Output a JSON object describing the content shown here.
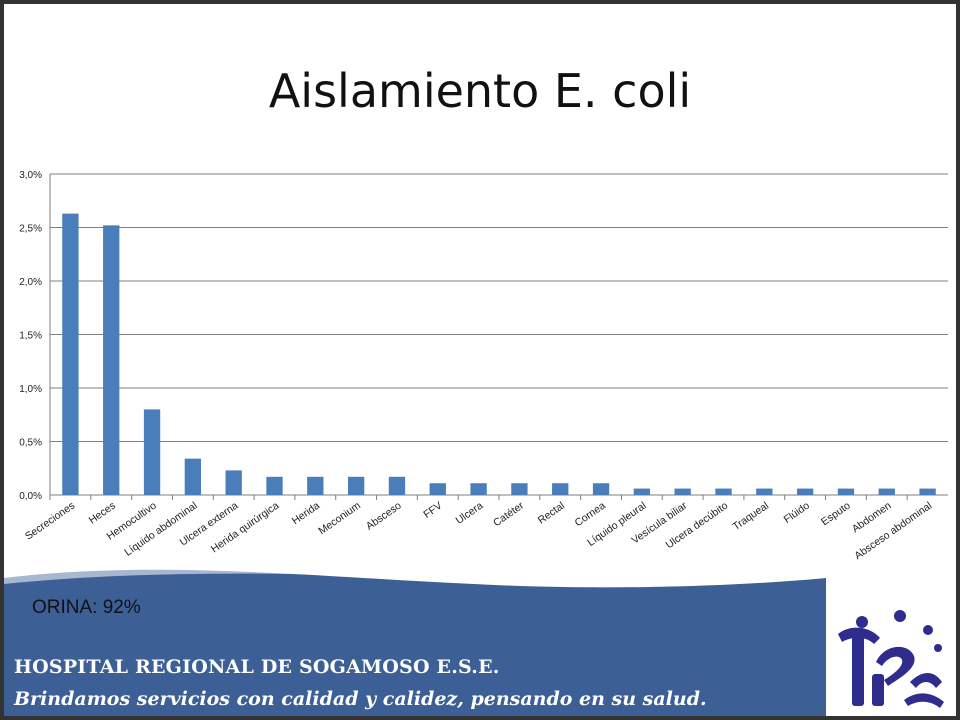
{
  "slide": {
    "title": "Aislamiento E. coli",
    "note": "ORINA: 92%",
    "hospital_name": "HOSPITAL REGIONAL DE SOGAMOSO E.S.E.",
    "slogan": "Brindamos servicios con calidad y calidez, pensando en su salud."
  },
  "colors": {
    "bar": "#4a7ebb",
    "grid": "#7f7f7f",
    "banner": "#3c5f96",
    "logo": "#2e2c8c"
  },
  "icons": [
    "hospital-logo-icon"
  ],
  "chart_data": {
    "type": "bar",
    "title": "Aislamiento E. coli",
    "categories": [
      "Secreciones",
      "Heces",
      "Hemocultivo",
      "Líquido abdominal",
      "Ulcera externa",
      "Herida quirúrgica",
      "Herida",
      "Meconium",
      "Absceso",
      "FFV",
      "Ulcera",
      "Catéter",
      "Rectal",
      "Cornea",
      "Líquido pleural",
      "Vesícula biliar",
      "Ulcera decúbito",
      "Traqueal",
      "Flúido",
      "Esputo",
      "Abdomen",
      "Absceso abdominal"
    ],
    "values": [
      2.63,
      2.52,
      0.8,
      0.34,
      0.23,
      0.17,
      0.17,
      0.17,
      0.17,
      0.11,
      0.11,
      0.11,
      0.11,
      0.11,
      0.06,
      0.06,
      0.06,
      0.06,
      0.06,
      0.06,
      0.06,
      0.06
    ],
    "ylim": [
      0,
      3.0
    ],
    "yticks": [
      "0,0%",
      "0,5%",
      "1,0%",
      "1,5%",
      "2,0%",
      "2,5%",
      "3,0%"
    ],
    "xlabel": "",
    "ylabel": "",
    "grid": true,
    "legend": "none"
  }
}
